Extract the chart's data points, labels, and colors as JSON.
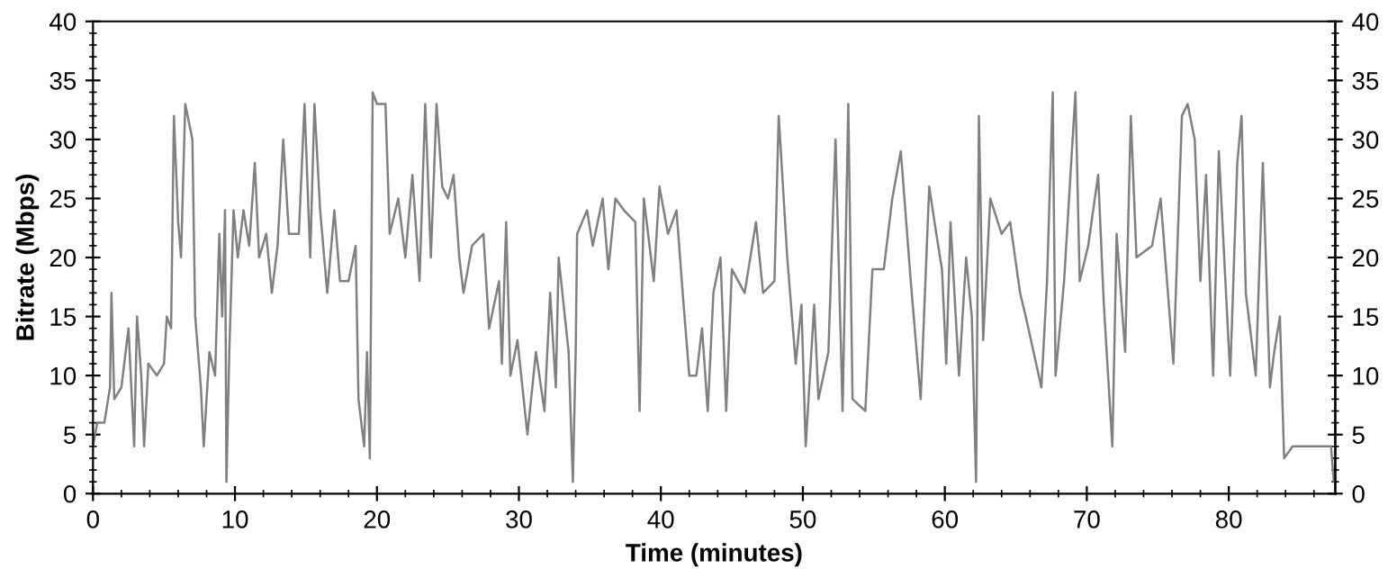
{
  "chart_data": {
    "type": "line",
    "xlabel": "Time (minutes)",
    "ylabel": "Bitrate (Mbps)",
    "xlim": [
      0,
      87.5
    ],
    "xticks": [
      0,
      10,
      20,
      30,
      40,
      50,
      60,
      70,
      80
    ],
    "ylim": [
      0,
      40
    ],
    "yticks": [
      0,
      5,
      10,
      15,
      20,
      25,
      30,
      35,
      40
    ],
    "y2lim": [
      0,
      40
    ],
    "y2ticks": [
      0,
      5,
      10,
      15,
      20,
      25,
      30,
      35,
      40
    ],
    "grid": false,
    "marker": "none",
    "line_style": "solid",
    "series": [
      {
        "color": "#808080",
        "x": [
          0,
          0.3,
          0.8,
          1.2,
          1.3,
          1.5,
          2.0,
          2.5,
          2.9,
          3.1,
          3.4,
          3.6,
          3.9,
          4.5,
          5.0,
          5.2,
          5.5,
          5.7,
          6.0,
          6.2,
          6.5,
          7.0,
          7.2,
          7.6,
          7.8,
          8.2,
          8.6,
          8.9,
          9.1,
          9.3,
          9.4,
          9.6,
          9.9,
          10.2,
          10.6,
          11.0,
          11.4,
          11.7,
          12.2,
          12.6,
          13.0,
          13.4,
          13.8,
          14.5,
          14.9,
          15.3,
          15.6,
          16.0,
          16.5,
          17.0,
          17.4,
          18.0,
          18.5,
          18.7,
          19.1,
          19.3,
          19.5,
          19.7,
          20.0,
          20.6,
          20.9,
          21.5,
          22.0,
          22.5,
          23.0,
          23.4,
          23.8,
          24.2,
          24.6,
          25.0,
          25.4,
          25.8,
          26.1,
          26.7,
          27.5,
          27.9,
          28.6,
          28.8,
          29.1,
          29.4,
          29.9,
          30.6,
          31.2,
          31.8,
          32.2,
          32.6,
          32.8,
          33.5,
          33.8,
          34.0,
          34.1,
          34.8,
          35.2,
          35.9,
          36.3,
          36.8,
          37.4,
          38.2,
          38.5,
          38.8,
          39.5,
          39.9,
          40.5,
          41.1,
          41.6,
          42.0,
          42.5,
          42.9,
          43.3,
          43.7,
          44.2,
          44.6,
          45.0,
          45.9,
          46.7,
          47.2,
          48.0,
          48.3,
          48.9,
          49.5,
          49.9,
          50.2,
          50.8,
          51.1,
          51.8,
          52.3,
          52.8,
          53.2,
          53.5,
          54.4,
          54.9,
          55.7,
          56.3,
          56.9,
          57.6,
          58.3,
          58.9,
          59.4,
          59.8,
          60.1,
          60.4,
          61.0,
          61.5,
          61.9,
          62.2,
          62.4,
          62.7,
          63.2,
          64.0,
          64.6,
          65.3,
          65.7,
          66.8,
          67.2,
          67.6,
          67.8,
          68.4,
          69.2,
          69.5,
          70.1,
          70.8,
          71.2,
          71.8,
          72.1,
          72.7,
          73.1,
          73.5,
          74.6,
          75.2,
          76.1,
          76.7,
          77.1,
          77.6,
          78.0,
          78.4,
          78.9,
          79.3,
          80.1,
          80.6,
          80.9,
          81.2,
          81.9,
          82.4,
          82.9,
          83.2,
          83.6,
          83.9,
          84.5,
          85.5,
          86.6,
          87.2,
          87.4
        ],
        "values": [
          4,
          6,
          6,
          9,
          17,
          8,
          9,
          14,
          4,
          15,
          10,
          4,
          11,
          10,
          11,
          15,
          14,
          32,
          23,
          20,
          33,
          30,
          15,
          9,
          4,
          12,
          10,
          22,
          15,
          24,
          1,
          12,
          24,
          20,
          24,
          21,
          28,
          20,
          22,
          17,
          21,
          30,
          22,
          22,
          33,
          20,
          33,
          24,
          17,
          24,
          18,
          18,
          21,
          8,
          4,
          12,
          3,
          34,
          33,
          33,
          22,
          25,
          20,
          27,
          18,
          33,
          20,
          33,
          26,
          25,
          27,
          20,
          17,
          21,
          22,
          14,
          18,
          11,
          23,
          10,
          13,
          5,
          12,
          7,
          17,
          9,
          20,
          12,
          1,
          12,
          22,
          24,
          21,
          25,
          19,
          25,
          24,
          23,
          7,
          25,
          18,
          26,
          22,
          24,
          16,
          10,
          10,
          14,
          7,
          17,
          20,
          7,
          19,
          17,
          23,
          17,
          18,
          32,
          20,
          11,
          16,
          4,
          16,
          8,
          12,
          30,
          7,
          33,
          8,
          7,
          19,
          19,
          25,
          29,
          18,
          8,
          26,
          22,
          19,
          11,
          23,
          10,
          20,
          15,
          1,
          32,
          13,
          25,
          22,
          23,
          17,
          15,
          9,
          18,
          34,
          10,
          18,
          34,
          18,
          21,
          27,
          16,
          4,
          22,
          12,
          32,
          20,
          21,
          25,
          11,
          32,
          33,
          30,
          18,
          27,
          10,
          29,
          10,
          28,
          32,
          17,
          10,
          28,
          9,
          12,
          15,
          3,
          4,
          4,
          4,
          4,
          1
        ]
      }
    ]
  }
}
